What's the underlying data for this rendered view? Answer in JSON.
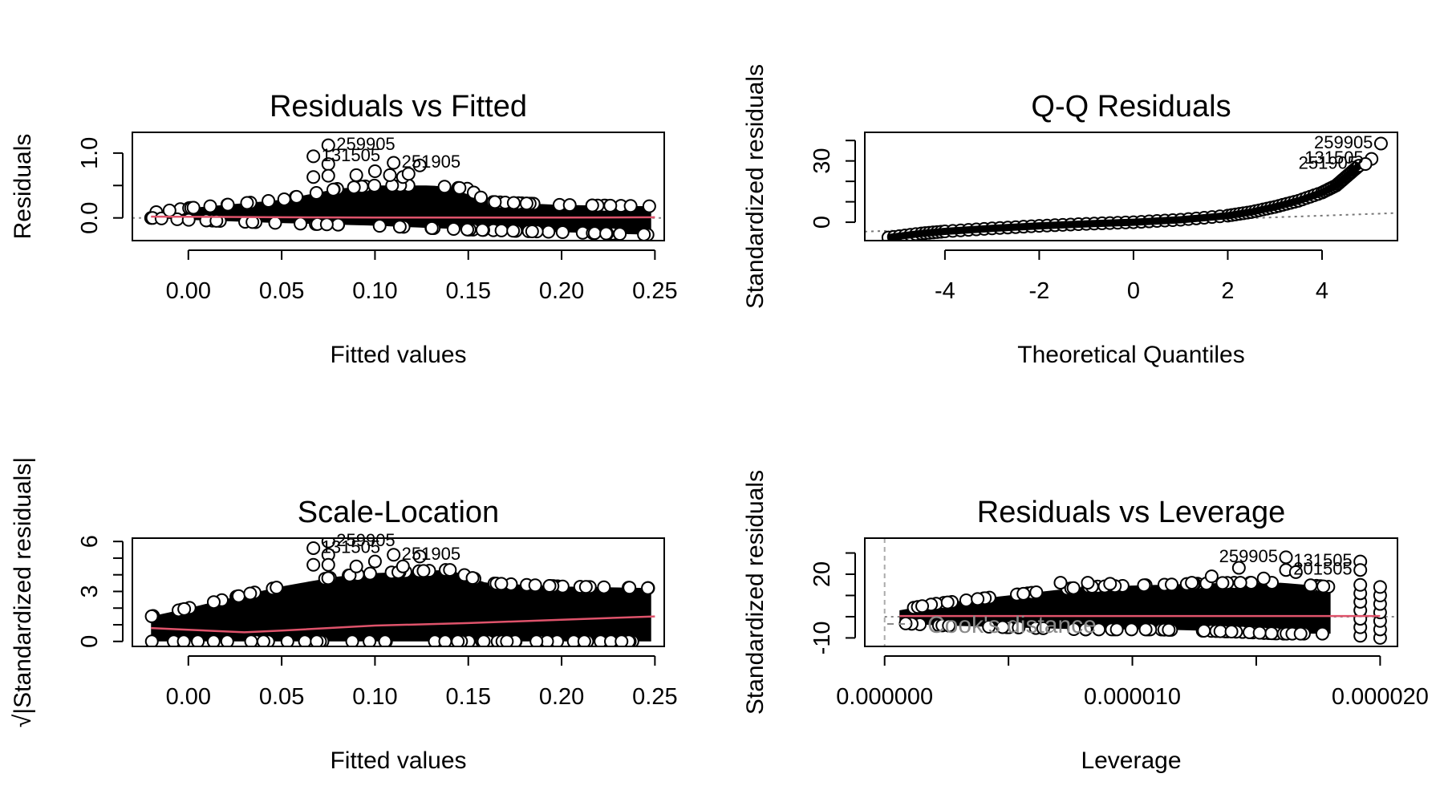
{
  "chart_data": [
    {
      "id": "resid-fitted",
      "type": "scatter",
      "title": "Residuals vs Fitted",
      "xlabel": "Fitted values",
      "ylabel": "Residuals",
      "xlim": [
        -0.03,
        0.255
      ],
      "ylim": [
        -0.35,
        1.32
      ],
      "x_ticks": [
        0.0,
        0.05,
        0.1,
        0.15,
        0.2,
        0.25
      ],
      "x_tick_labels": [
        "0.00",
        "0.05",
        "0.10",
        "0.15",
        "0.20",
        "0.25"
      ],
      "y_ticks": [
        0.0,
        1.0
      ],
      "y_tick_labels": [
        "0.0",
        "1.0"
      ],
      "y_minor_ticks": [
        0.0,
        0.5,
        1.0
      ],
      "reference_line": {
        "y": 0,
        "style": "dotted",
        "color": "#888888"
      },
      "smooth_color": "#DF536B",
      "smooth": {
        "x": [
          -0.02,
          0.05,
          0.1,
          0.15,
          0.2,
          0.25
        ],
        "y": [
          0.02,
          0.01,
          0.005,
          0.005,
          0.005,
          0.01
        ]
      },
      "cloud_upper": {
        "x": [
          -0.02,
          0.0,
          0.05,
          0.08,
          0.1,
          0.13,
          0.15,
          0.16,
          0.2,
          0.248
        ],
        "y": [
          0.08,
          0.15,
          0.28,
          0.45,
          0.5,
          0.5,
          0.45,
          0.25,
          0.2,
          0.18
        ]
      },
      "cloud_lower": {
        "x": [
          -0.02,
          0.0,
          0.05,
          0.1,
          0.15,
          0.2,
          0.248
        ],
        "y": [
          0.0,
          -0.03,
          -0.08,
          -0.12,
          -0.18,
          -0.22,
          -0.26
        ]
      },
      "points": [
        {
          "x": 0.075,
          "y": 1.12
        },
        {
          "x": 0.067,
          "y": 0.95
        },
        {
          "x": 0.11,
          "y": 0.85
        },
        {
          "x": 0.124,
          "y": 0.81
        },
        {
          "x": 0.075,
          "y": 0.83
        },
        {
          "x": 0.067,
          "y": 0.63
        },
        {
          "x": 0.075,
          "y": 0.65
        },
        {
          "x": 0.1,
          "y": 0.72
        },
        {
          "x": 0.09,
          "y": 0.66
        },
        {
          "x": 0.108,
          "y": 0.66
        },
        {
          "x": 0.115,
          "y": 0.63
        },
        {
          "x": 0.118,
          "y": 0.68
        }
      ],
      "point_labels": [
        {
          "text": "259905",
          "x": 0.075,
          "y": 1.12
        },
        {
          "text": "131505",
          "x": 0.067,
          "y": 0.95
        },
        {
          "text": "251905",
          "x": 0.11,
          "y": 0.85
        }
      ]
    },
    {
      "id": "qq",
      "type": "scatter",
      "title": "Q-Q Residuals",
      "xlabel": "Theoretical Quantiles",
      "ylabel": "Standardized residuals",
      "xlim": [
        -5.7,
        5.6
      ],
      "ylim": [
        -9,
        44
      ],
      "x_ticks": [
        -4,
        -2,
        0,
        2,
        4
      ],
      "x_tick_labels": [
        "-4",
        "-2",
        "0",
        "2",
        "4"
      ],
      "y_ticks": [
        0,
        30
      ],
      "y_tick_labels": [
        "0",
        "30"
      ],
      "y_minor_ticks": [
        0,
        10,
        20,
        30,
        40
      ],
      "reference_line": {
        "x": [
          -5.7,
          5.6
        ],
        "y": [
          -4.6,
          4.5
        ],
        "style": "dotted",
        "color": "#777777"
      },
      "curve": {
        "x": [
          -5.2,
          -4.5,
          -4.0,
          -3.0,
          -2.0,
          -1.0,
          0.0,
          1.0,
          2.0,
          2.5,
          3.0,
          3.5,
          4.0,
          4.3,
          4.5,
          4.7,
          4.8
        ],
        "y": [
          -7.5,
          -5.5,
          -4.5,
          -3.0,
          -1.8,
          -0.8,
          0.0,
          1.2,
          3.2,
          5.0,
          7.5,
          10.5,
          14.5,
          18.0,
          22.0,
          26.0,
          28.0
        ]
      },
      "points": [
        {
          "x": 5.25,
          "y": 38.5
        },
        {
          "x": 5.05,
          "y": 31.0
        },
        {
          "x": 4.92,
          "y": 28.5
        }
      ],
      "point_labels": [
        {
          "text": "259905",
          "x": 5.25,
          "y": 38.5
        },
        {
          "text": "131505",
          "x": 5.05,
          "y": 31.0
        },
        {
          "text": "251905",
          "x": 4.92,
          "y": 28.5
        }
      ]
    },
    {
      "id": "scale-location",
      "type": "scatter",
      "title": "Scale-Location",
      "xlabel": "Fitted values",
      "ylabel": "√|Standardized residuals|",
      "xlim": [
        -0.03,
        0.255
      ],
      "ylim": [
        -0.3,
        6.2
      ],
      "x_ticks": [
        0.0,
        0.05,
        0.1,
        0.15,
        0.2,
        0.25
      ],
      "x_tick_labels": [
        "0.00",
        "0.05",
        "0.10",
        "0.15",
        "0.20",
        "0.25"
      ],
      "y_ticks": [
        0,
        3,
        6
      ],
      "y_tick_labels": [
        "0",
        "3",
        "6"
      ],
      "y_minor_ticks": [
        0,
        1,
        2,
        3,
        4,
        5,
        6
      ],
      "smooth_color": "#DF536B",
      "smooth": {
        "x": [
          -0.02,
          0.0,
          0.03,
          0.05,
          0.1,
          0.15,
          0.2,
          0.25
        ],
        "y": [
          0.8,
          0.7,
          0.55,
          0.65,
          0.95,
          1.1,
          1.3,
          1.5
        ]
      },
      "cloud_upper": {
        "x": [
          -0.02,
          0.0,
          0.03,
          0.05,
          0.08,
          0.1,
          0.14,
          0.16,
          0.2,
          0.248
        ],
        "y": [
          1.5,
          2.0,
          2.8,
          3.3,
          3.9,
          4.1,
          4.3,
          3.5,
          3.3,
          3.2
        ]
      },
      "cloud_lower": {
        "x": [
          -0.02,
          0.248
        ],
        "y": [
          0.0,
          0.0
        ]
      },
      "points": [
        {
          "x": 0.075,
          "y": 6.0
        },
        {
          "x": 0.067,
          "y": 5.6
        },
        {
          "x": 0.11,
          "y": 5.2
        },
        {
          "x": 0.124,
          "y": 5.1
        },
        {
          "x": 0.075,
          "y": 5.2
        },
        {
          "x": 0.067,
          "y": 4.6
        },
        {
          "x": 0.075,
          "y": 4.6
        },
        {
          "x": 0.09,
          "y": 4.5
        },
        {
          "x": 0.1,
          "y": 4.8
        },
        {
          "x": 0.115,
          "y": 4.5
        }
      ],
      "point_labels": [
        {
          "text": "259905",
          "x": 0.075,
          "y": 6.0
        },
        {
          "text": "131505",
          "x": 0.067,
          "y": 5.6
        },
        {
          "text": "251905",
          "x": 0.11,
          "y": 5.2
        }
      ]
    },
    {
      "id": "resid-leverage",
      "type": "scatter",
      "title": "Residuals vs Leverage",
      "xlabel": "Leverage",
      "ylabel": "Standardized residuals",
      "xlim": [
        -8e-07,
        2.07e-05
      ],
      "ylim": [
        -14,
        37
      ],
      "x_ticks": [
        0.0,
        5e-06,
        1e-05,
        1.5e-05,
        2e-05
      ],
      "x_tick_labels": [
        "0.000000",
        "",
        "0.000010",
        "",
        "0.000020"
      ],
      "y_ticks": [
        -10,
        20
      ],
      "y_tick_labels": [
        "-10",
        "20"
      ],
      "y_minor_ticks": [
        -10,
        0,
        10,
        20,
        30
      ],
      "reference_line": {
        "y": 0,
        "x0": 0.0,
        "style": "dotted",
        "color": "#888888"
      },
      "vertical_line": {
        "x": 0.0,
        "style": "dashed",
        "color": "#aaaaaa"
      },
      "smooth_color": "#DF536B",
      "smooth": {
        "x": [
          6e-07,
          2e-05
        ],
        "y": [
          0.3,
          0.3
        ]
      },
      "cook_label": "Cook's distance",
      "cloud_upper": {
        "x": [
          6e-07,
          2e-06,
          5e-06,
          8e-06,
          1.1e-05,
          1.4e-05,
          1.6e-05,
          1.8e-05
        ],
        "y": [
          3,
          6,
          10,
          14,
          15,
          16,
          16,
          14
        ]
      },
      "cloud_lower": {
        "x": [
          6e-07,
          2e-06,
          5e-06,
          8e-06,
          1.1e-05,
          1.4e-05,
          1.6e-05,
          1.8e-05
        ],
        "y": [
          -3,
          -4,
          -5,
          -6,
          -6,
          -7,
          -8,
          -8
        ]
      },
      "clusters": [
        {
          "x": 1.92e-05,
          "ymin": -9,
          "ymax": 15
        },
        {
          "x": 2e-05,
          "ymin": -10,
          "ymax": 16
        }
      ],
      "points": [
        {
          "x": 1.62e-05,
          "y": 28
        },
        {
          "x": 1.92e-05,
          "y": 26
        },
        {
          "x": 1.62e-05,
          "y": 22
        },
        {
          "x": 1.92e-05,
          "y": 22
        },
        {
          "x": 1.43e-05,
          "y": 23
        },
        {
          "x": 1.32e-05,
          "y": 19
        },
        {
          "x": 1.53e-05,
          "y": 18
        },
        {
          "x": 1.66e-05,
          "y": 21
        },
        {
          "x": 7.1e-06,
          "y": 16
        },
        {
          "x": 8.2e-06,
          "y": 16
        },
        {
          "x": 9.1e-06,
          "y": 15.5
        },
        {
          "x": 1.24e-05,
          "y": 16
        }
      ],
      "point_labels": [
        {
          "text": "259905",
          "x": 1.62e-05,
          "y": 28
        },
        {
          "text": "131505",
          "x": 1.92e-05,
          "y": 26
        },
        {
          "text": "201505",
          "x": 1.92e-05,
          "y": 22
        }
      ]
    }
  ]
}
